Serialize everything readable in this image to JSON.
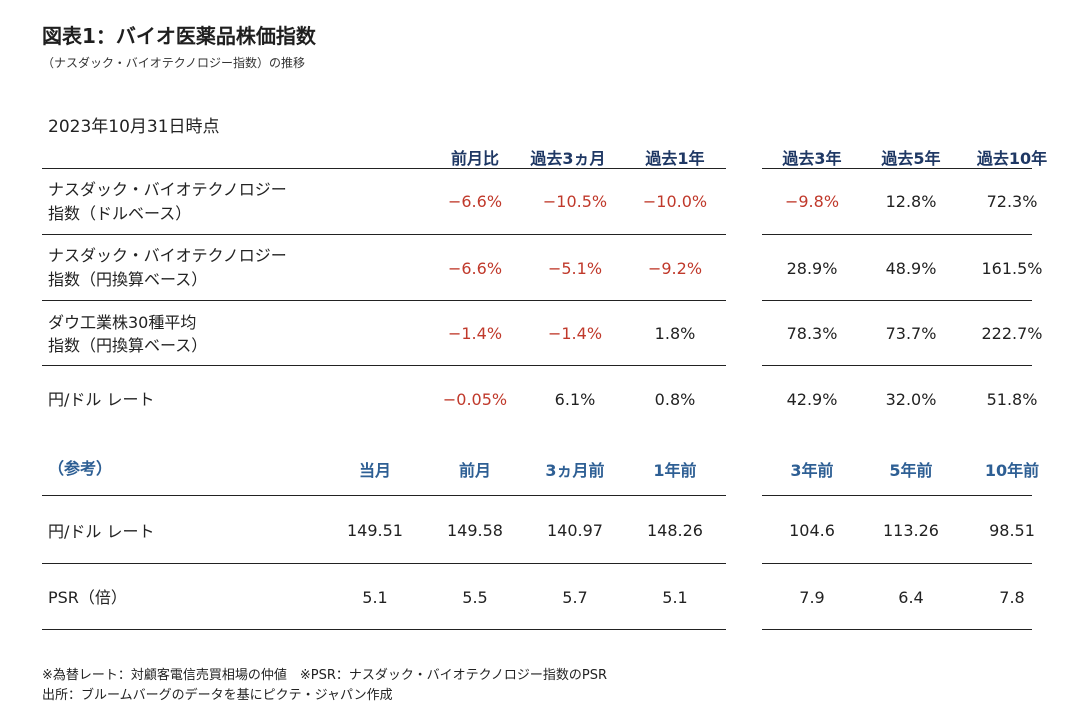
{
  "title": "図表1：バイオ医薬品株価指数",
  "subtitle": "（ナスダック・バイオテクノロジー指数）の推移",
  "as_of": "2023年10月31日時点",
  "colors": {
    "header": "#1f3864",
    "ref_header": "#2e5f94",
    "negative": "#c0392b"
  },
  "table1": {
    "headers": [
      "前月比",
      "過去3ヵ月",
      "過去1年",
      "過去3年",
      "過去5年",
      "過去10年"
    ],
    "rows": [
      {
        "label1": "ナスダック・バイオテクノロジー",
        "label2": "指数（ドルベース）",
        "values": [
          "−6.6%",
          "−10.5%",
          "−10.0%",
          "−9.8%",
          "12.8%",
          "72.3%"
        ]
      },
      {
        "label1": "ナスダック・バイオテクノロジー",
        "label2": "指数（円換算ベース）",
        "values": [
          "−6.6%",
          "−5.1%",
          "−9.2%",
          "28.9%",
          "48.9%",
          "161.5%"
        ]
      },
      {
        "label1": "ダウ工業株30種平均",
        "label2": "指数（円換算ベース）",
        "values": [
          "−1.4%",
          "−1.4%",
          "1.8%",
          "78.3%",
          "73.7%",
          "222.7%"
        ]
      },
      {
        "label1": "円/ドル レート",
        "label2": "",
        "values": [
          "−0.05%",
          "6.1%",
          "0.8%",
          "42.9%",
          "32.0%",
          "51.8%"
        ]
      }
    ]
  },
  "table2": {
    "label": "（参考）",
    "headers": [
      "当月",
      "前月",
      "3ヵ月前",
      "1年前",
      "3年前",
      "5年前",
      "10年前"
    ],
    "rows": [
      {
        "label": "円/ドル レート",
        "values": [
          "149.51",
          "149.58",
          "140.97",
          "148.26",
          "104.6",
          "113.26",
          "98.51"
        ]
      },
      {
        "label": "PSR（倍）",
        "values": [
          "5.1",
          "5.5",
          "5.7",
          "5.1",
          "7.9",
          "6.4",
          "7.8"
        ]
      }
    ]
  },
  "notes": {
    "line1": "※為替レート：対顧客電信売買相場の仲値　※PSR：ナスダック・バイオテクノロジー指数のPSR",
    "line2": "出所：ブルームバーグのデータを基にピクテ・ジャパン作成"
  }
}
